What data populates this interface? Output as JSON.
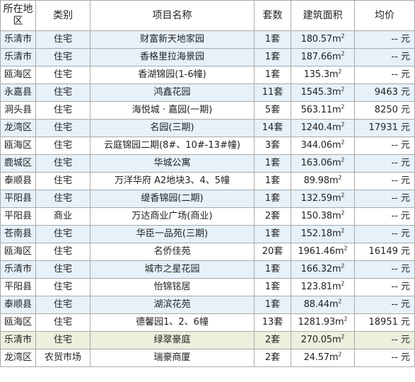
{
  "headers": {
    "district": "所在地区",
    "type": "类别",
    "project": "项目名称",
    "units": "套数",
    "area": "建筑面积",
    "price": "均价"
  },
  "area_unit": "m²",
  "price_unit": "元",
  "price_placeholder": "--",
  "rows": [
    {
      "district": "乐清市",
      "type": "住宅",
      "project": "财富新天地家园",
      "units": "1套",
      "area": "180.57",
      "price": "--",
      "shade": "blue"
    },
    {
      "district": "乐清市",
      "type": "住宅",
      "project": "香格里拉海景园",
      "units": "1套",
      "area": "187.66",
      "price": "--",
      "shade": "blue"
    },
    {
      "district": "瓯海区",
      "type": "住宅",
      "project": "香湖锦园(1-6幢)",
      "units": "1套",
      "area": "135.3",
      "price": "--",
      "shade": "none"
    },
    {
      "district": "永嘉县",
      "type": "住宅",
      "project": "鸿鑫花园",
      "units": "11套",
      "area": "1545.3",
      "price": "9463",
      "shade": "blue"
    },
    {
      "district": "洞头县",
      "type": "住宅",
      "project": "海悦城 · 嘉园(一期)",
      "units": "5套",
      "area": "563.11",
      "price": "8250",
      "shade": "none"
    },
    {
      "district": "龙湾区",
      "type": "住宅",
      "project": "名园(三期)",
      "units": "14套",
      "area": "1240.4",
      "price": "17931",
      "shade": "blue"
    },
    {
      "district": "瓯海区",
      "type": "住宅",
      "project": "云庭锦园二期(8#、10#-13#幢)",
      "units": "3套",
      "area": "344.06",
      "price": "--",
      "shade": "none"
    },
    {
      "district": "鹿城区",
      "type": "住宅",
      "project": "华城公寓",
      "units": "1套",
      "area": "163.06",
      "price": "--",
      "shade": "blue"
    },
    {
      "district": "泰顺县",
      "type": "住宅",
      "project": "万洋华府 A2地块3、4、5幢",
      "units": "1套",
      "area": "89.98",
      "price": "--",
      "shade": "none"
    },
    {
      "district": "平阳县",
      "type": "住宅",
      "project": "缇香锦园(二期)",
      "units": "1套",
      "area": "132.59",
      "price": "--",
      "shade": "blue"
    },
    {
      "district": "平阳县",
      "type": "商业",
      "project": "万达商业广场(商业)",
      "units": "2套",
      "area": "150.38",
      "price": "--",
      "shade": "none"
    },
    {
      "district": "苍南县",
      "type": "住宅",
      "project": "华臣一品苑(三期)",
      "units": "1套",
      "area": "152.18",
      "price": "--",
      "shade": "blue"
    },
    {
      "district": "瓯海区",
      "type": "住宅",
      "project": "名侨佳苑",
      "units": "20套",
      "area": "1961.46",
      "price": "16149",
      "shade": "none"
    },
    {
      "district": "乐清市",
      "type": "住宅",
      "project": "城市之星花园",
      "units": "1套",
      "area": "166.32",
      "price": "--",
      "shade": "blue"
    },
    {
      "district": "平阳县",
      "type": "住宅",
      "project": "怡锦铭居",
      "units": "1套",
      "area": "123.81",
      "price": "--",
      "shade": "none"
    },
    {
      "district": "泰顺县",
      "type": "住宅",
      "project": "湖滨花苑",
      "units": "1套",
      "area": "88.44",
      "price": "--",
      "shade": "blue"
    },
    {
      "district": "瓯海区",
      "type": "住宅",
      "project": "德馨园1、2、6幢",
      "units": "13套",
      "area": "1281.93",
      "price": "18951",
      "shade": "none"
    },
    {
      "district": "乐清市",
      "type": "住宅",
      "project": "绿翠豪庭",
      "units": "2套",
      "area": "270.05",
      "price": "--",
      "shade": "green"
    },
    {
      "district": "龙湾区",
      "type": "农贸市场",
      "project": "瑞豪商厦",
      "units": "2套",
      "area": "24.57",
      "price": "--",
      "shade": "none"
    }
  ]
}
